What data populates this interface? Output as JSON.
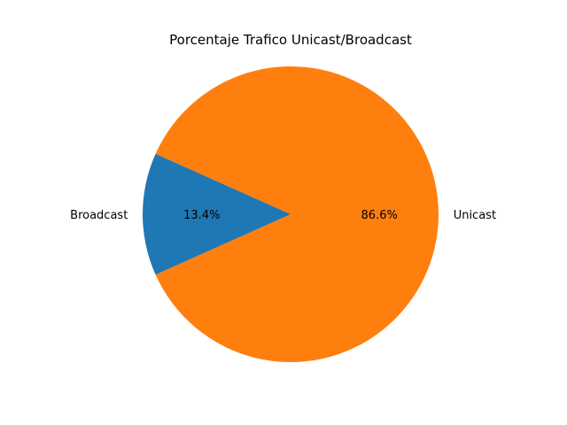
{
  "chart_data": {
    "type": "pie",
    "title": "Porcentaje Trafico Unicast/Broadcast",
    "startangle_deg": 0,
    "slices": [
      {
        "label": "Unicast",
        "value": 86.6,
        "pct_label": "86.6%",
        "color": "#ff7f0e"
      },
      {
        "label": "Broadcast",
        "value": 13.4,
        "pct_label": "13.4%",
        "color": "#1f77b4"
      }
    ]
  }
}
